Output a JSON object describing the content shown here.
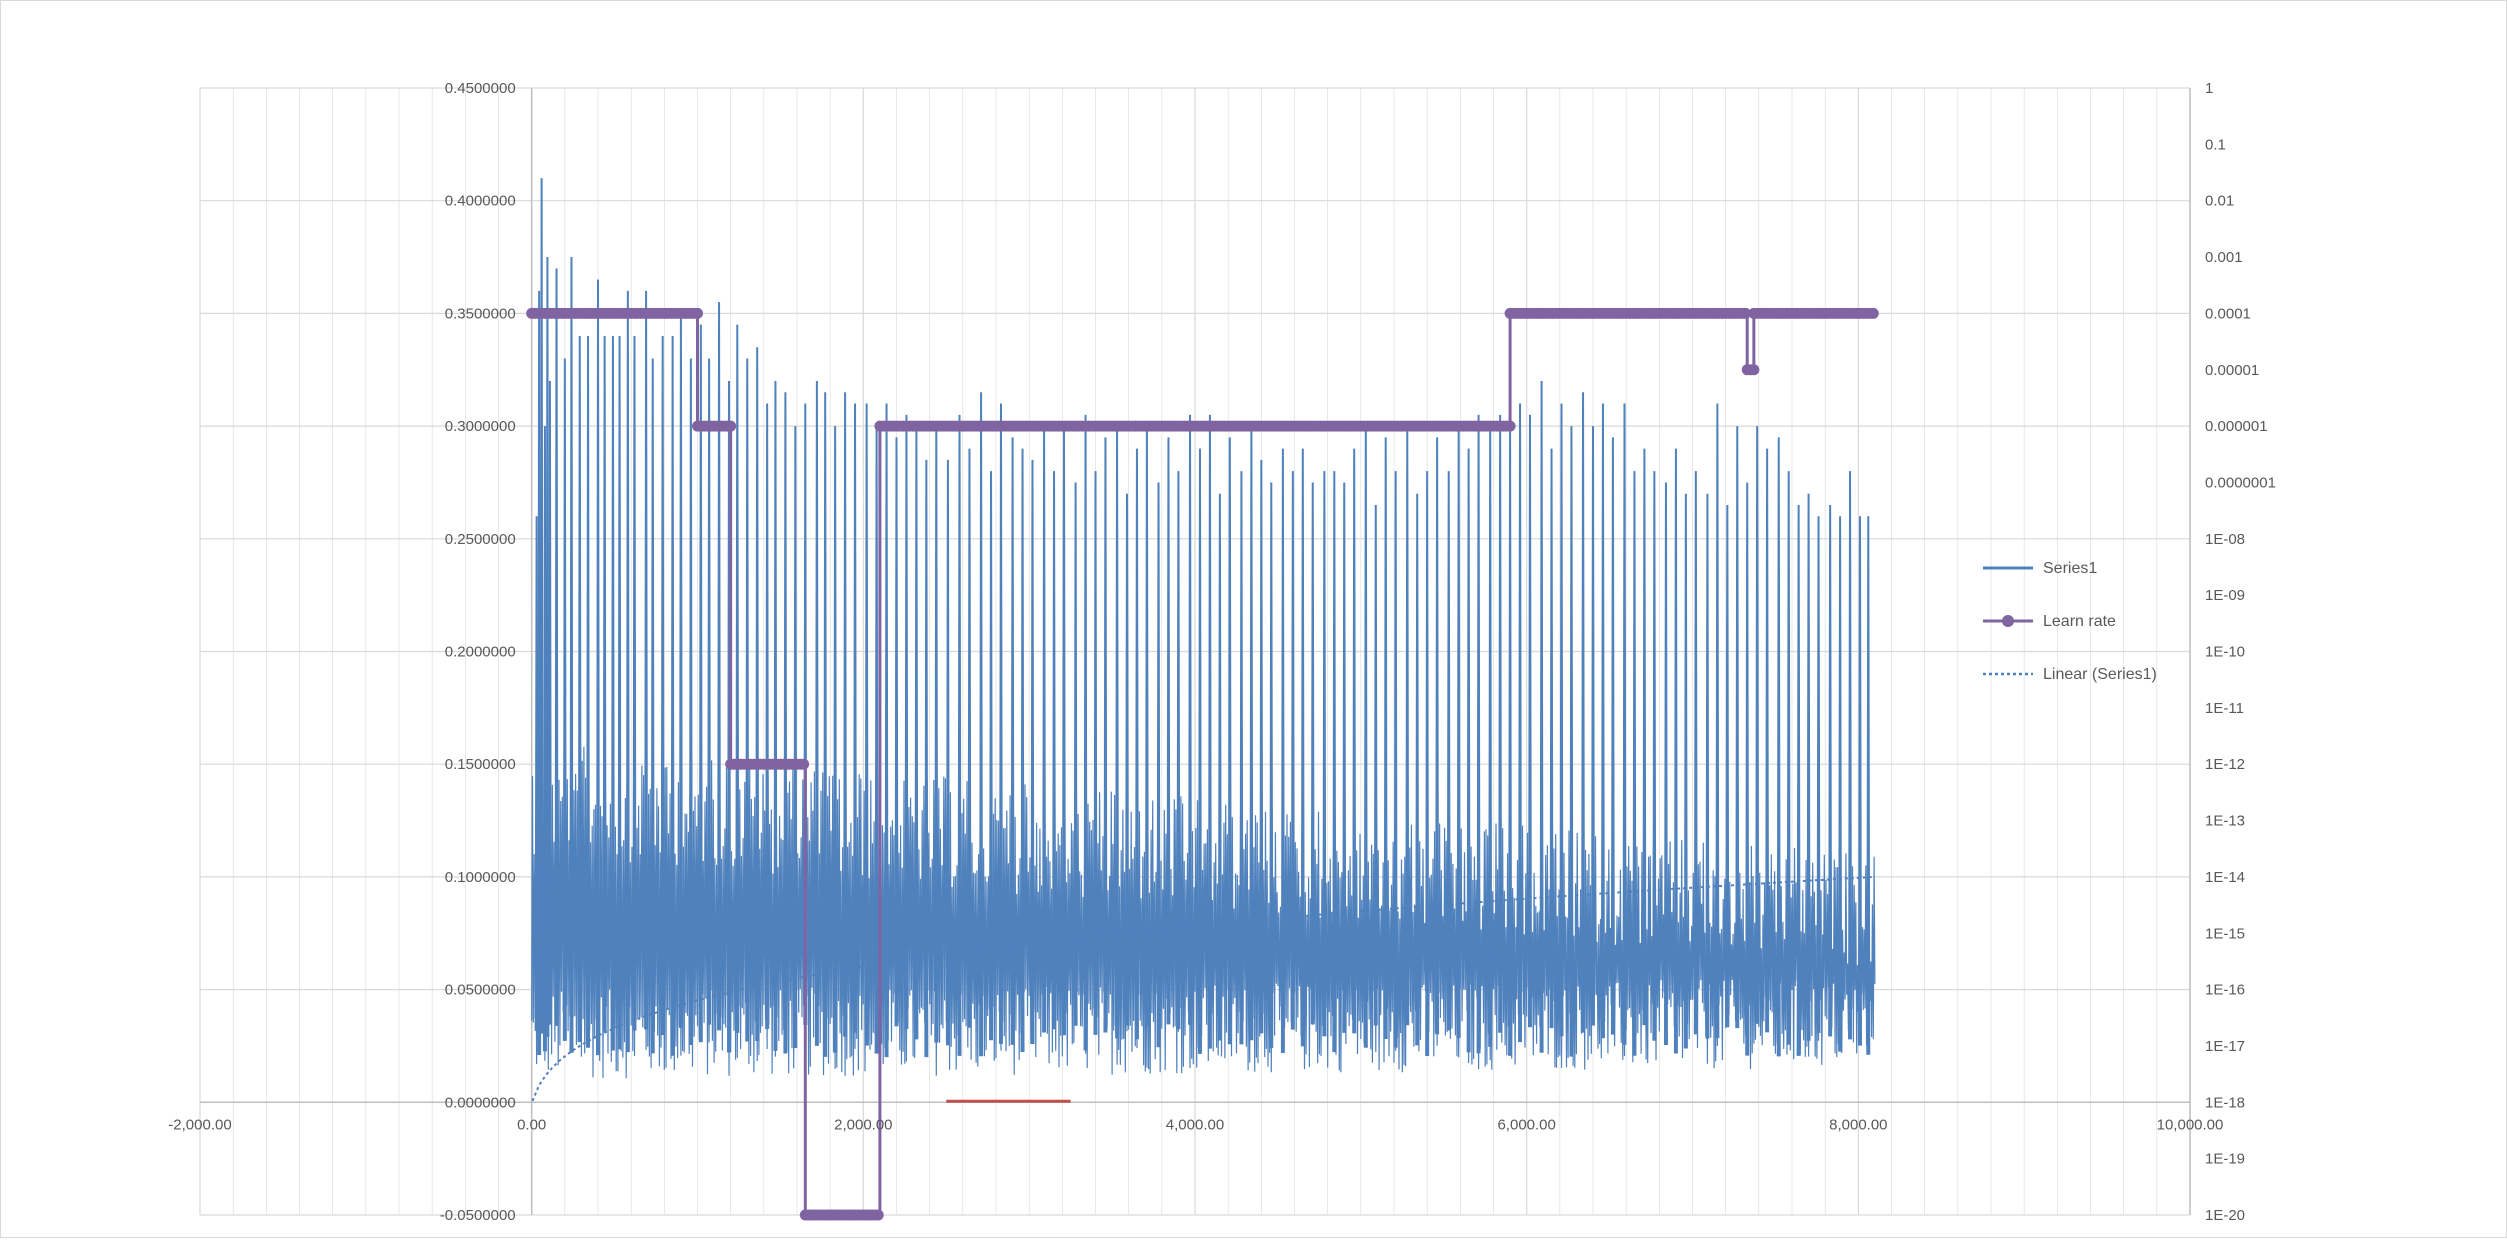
{
  "colors": {
    "series1": "#4f81bd",
    "learn_rate": "#8064a2",
    "trend": "#4f81bd",
    "grid": "#d9d9d9",
    "axis_label": "#595959",
    "red_marker": "#c0504d"
  },
  "chart_data": {
    "type": "line",
    "x_axis": {
      "min": -2000,
      "max": 10000,
      "major_step": 2000,
      "minor_step": 200,
      "tick_labels": [
        "-2,000.00",
        "0.00",
        "2,000.00",
        "4,000.00",
        "6,000.00",
        "8,000.00",
        "10,000.00"
      ]
    },
    "y_axis_left": {
      "min": -0.05,
      "max": 0.45,
      "step": 0.05,
      "tick_labels": [
        "0.4500000",
        "0.4000000",
        "0.3500000",
        "0.3000000",
        "0.2500000",
        "0.2000000",
        "0.1500000",
        "0.1000000",
        "0.0500000",
        "0.0000000",
        "-0.0500000"
      ]
    },
    "y_axis_right": {
      "scale": "log",
      "min_exp": -20,
      "max_exp": 0,
      "tick_labels": [
        "1",
        "0.1",
        "0.01",
        "0.001",
        "0.0001",
        "0.00001",
        "0.000001",
        "0.0000001",
        "1E-08",
        "1E-09",
        "1E-10",
        "1E-11",
        "1E-12",
        "1E-13",
        "1E-14",
        "1E-15",
        "1E-16",
        "1E-17",
        "1E-18",
        "1E-19",
        "1E-20"
      ]
    },
    "grid": true,
    "legend_position": "right",
    "legend": [
      "Series1",
      "Learn rate",
      "Linear (Series1)"
    ],
    "series": [
      {
        "name": "Series1",
        "axis": "left",
        "x_range": [
          0,
          8100
        ],
        "band_low_start": 0.01,
        "band_low_end": 0.015,
        "band_high_start": 0.16,
        "band_high_end": 0.11,
        "spikes": [
          [
            30,
            0.26
          ],
          [
            45,
            0.36
          ],
          [
            60,
            0.41
          ],
          [
            80,
            0.3
          ],
          [
            95,
            0.375
          ],
          [
            110,
            0.32
          ],
          [
            150,
            0.37
          ],
          [
            200,
            0.33
          ],
          [
            240,
            0.375
          ],
          [
            290,
            0.34
          ],
          [
            340,
            0.34
          ],
          [
            400,
            0.365
          ],
          [
            440,
            0.34
          ],
          [
            490,
            0.34
          ],
          [
            530,
            0.34
          ],
          [
            580,
            0.36
          ],
          [
            620,
            0.34
          ],
          [
            690,
            0.36
          ],
          [
            730,
            0.33
          ],
          [
            790,
            0.34
          ],
          [
            850,
            0.34
          ],
          [
            900,
            0.35
          ],
          [
            960,
            0.33
          ],
          [
            1020,
            0.345
          ],
          [
            1070,
            0.33
          ],
          [
            1130,
            0.355
          ],
          [
            1190,
            0.32
          ],
          [
            1240,
            0.345
          ],
          [
            1300,
            0.33
          ],
          [
            1360,
            0.335
          ],
          [
            1420,
            0.31
          ],
          [
            1470,
            0.32
          ],
          [
            1530,
            0.315
          ],
          [
            1590,
            0.3
          ],
          [
            1650,
            0.31
          ],
          [
            1720,
            0.32
          ],
          [
            1770,
            0.315
          ],
          [
            1830,
            0.3
          ],
          [
            1890,
            0.315
          ],
          [
            1950,
            0.31
          ],
          [
            2020,
            0.31
          ],
          [
            2080,
            0.3
          ],
          [
            2140,
            0.31
          ],
          [
            2200,
            0.295
          ],
          [
            2260,
            0.305
          ],
          [
            2320,
            0.3
          ],
          [
            2380,
            0.285
          ],
          [
            2440,
            0.3
          ],
          [
            2510,
            0.285
          ],
          [
            2580,
            0.305
          ],
          [
            2640,
            0.29
          ],
          [
            2710,
            0.315
          ],
          [
            2770,
            0.28
          ],
          [
            2830,
            0.31
          ],
          [
            2900,
            0.295
          ],
          [
            2960,
            0.29
          ],
          [
            3020,
            0.285
          ],
          [
            3090,
            0.3
          ],
          [
            3150,
            0.28
          ],
          [
            3210,
            0.3
          ],
          [
            3280,
            0.275
          ],
          [
            3340,
            0.305
          ],
          [
            3400,
            0.28
          ],
          [
            3460,
            0.295
          ],
          [
            3530,
            0.3
          ],
          [
            3590,
            0.27
          ],
          [
            3650,
            0.29
          ],
          [
            3710,
            0.3
          ],
          [
            3780,
            0.275
          ],
          [
            3840,
            0.295
          ],
          [
            3900,
            0.28
          ],
          [
            3970,
            0.305
          ],
          [
            4030,
            0.29
          ],
          [
            4090,
            0.305
          ],
          [
            4150,
            0.27
          ],
          [
            4210,
            0.295
          ],
          [
            4280,
            0.28
          ],
          [
            4340,
            0.3
          ],
          [
            4400,
            0.285
          ],
          [
            4460,
            0.275
          ],
          [
            4530,
            0.29
          ],
          [
            4590,
            0.28
          ],
          [
            4650,
            0.29
          ],
          [
            4710,
            0.275
          ],
          [
            4780,
            0.28
          ],
          [
            4840,
            0.28
          ],
          [
            4900,
            0.275
          ],
          [
            4960,
            0.29
          ],
          [
            5030,
            0.3
          ],
          [
            5090,
            0.265
          ],
          [
            5150,
            0.295
          ],
          [
            5210,
            0.28
          ],
          [
            5280,
            0.3
          ],
          [
            5340,
            0.27
          ],
          [
            5400,
            0.28
          ],
          [
            5460,
            0.295
          ],
          [
            5530,
            0.28
          ],
          [
            5590,
            0.3
          ],
          [
            5650,
            0.29
          ],
          [
            5710,
            0.305
          ],
          [
            5780,
            0.3
          ],
          [
            5840,
            0.305
          ],
          [
            5900,
            0.3
          ],
          [
            5960,
            0.31
          ],
          [
            6020,
            0.305
          ],
          [
            6090,
            0.32
          ],
          [
            6150,
            0.29
          ],
          [
            6210,
            0.31
          ],
          [
            6270,
            0.3
          ],
          [
            6340,
            0.315
          ],
          [
            6400,
            0.3
          ],
          [
            6460,
            0.31
          ],
          [
            6520,
            0.295
          ],
          [
            6590,
            0.31
          ],
          [
            6650,
            0.28
          ],
          [
            6710,
            0.29
          ],
          [
            6770,
            0.28
          ],
          [
            6840,
            0.275
          ],
          [
            6900,
            0.29
          ],
          [
            6960,
            0.27
          ],
          [
            7020,
            0.28
          ],
          [
            7090,
            0.27
          ],
          [
            7150,
            0.31
          ],
          [
            7210,
            0.265
          ],
          [
            7270,
            0.3
          ],
          [
            7330,
            0.275
          ],
          [
            7390,
            0.3
          ],
          [
            7450,
            0.29
          ],
          [
            7520,
            0.295
          ],
          [
            7580,
            0.28
          ],
          [
            7640,
            0.265
          ],
          [
            7700,
            0.27
          ],
          [
            7760,
            0.26
          ],
          [
            7830,
            0.265
          ],
          [
            7890,
            0.26
          ],
          [
            7950,
            0.28
          ],
          [
            8010,
            0.26
          ],
          [
            8060,
            0.26
          ]
        ]
      },
      {
        "name": "Learn rate",
        "axis": "right-log",
        "exponent_steps": [
          [
            0,
            1000,
            -4
          ],
          [
            1000,
            1200,
            -6
          ],
          [
            1200,
            1650,
            -12
          ],
          [
            1650,
            2100,
            -20
          ],
          [
            2100,
            5900,
            -6
          ],
          [
            5900,
            7330,
            -4
          ],
          [
            7330,
            7370,
            -5
          ],
          [
            7370,
            8100,
            -4
          ]
        ]
      },
      {
        "name": "Linear (Series1)",
        "type": "log-trendline",
        "x_range": [
          0,
          8100
        ],
        "y_range": [
          0.0,
          0.1
        ]
      }
    ]
  }
}
